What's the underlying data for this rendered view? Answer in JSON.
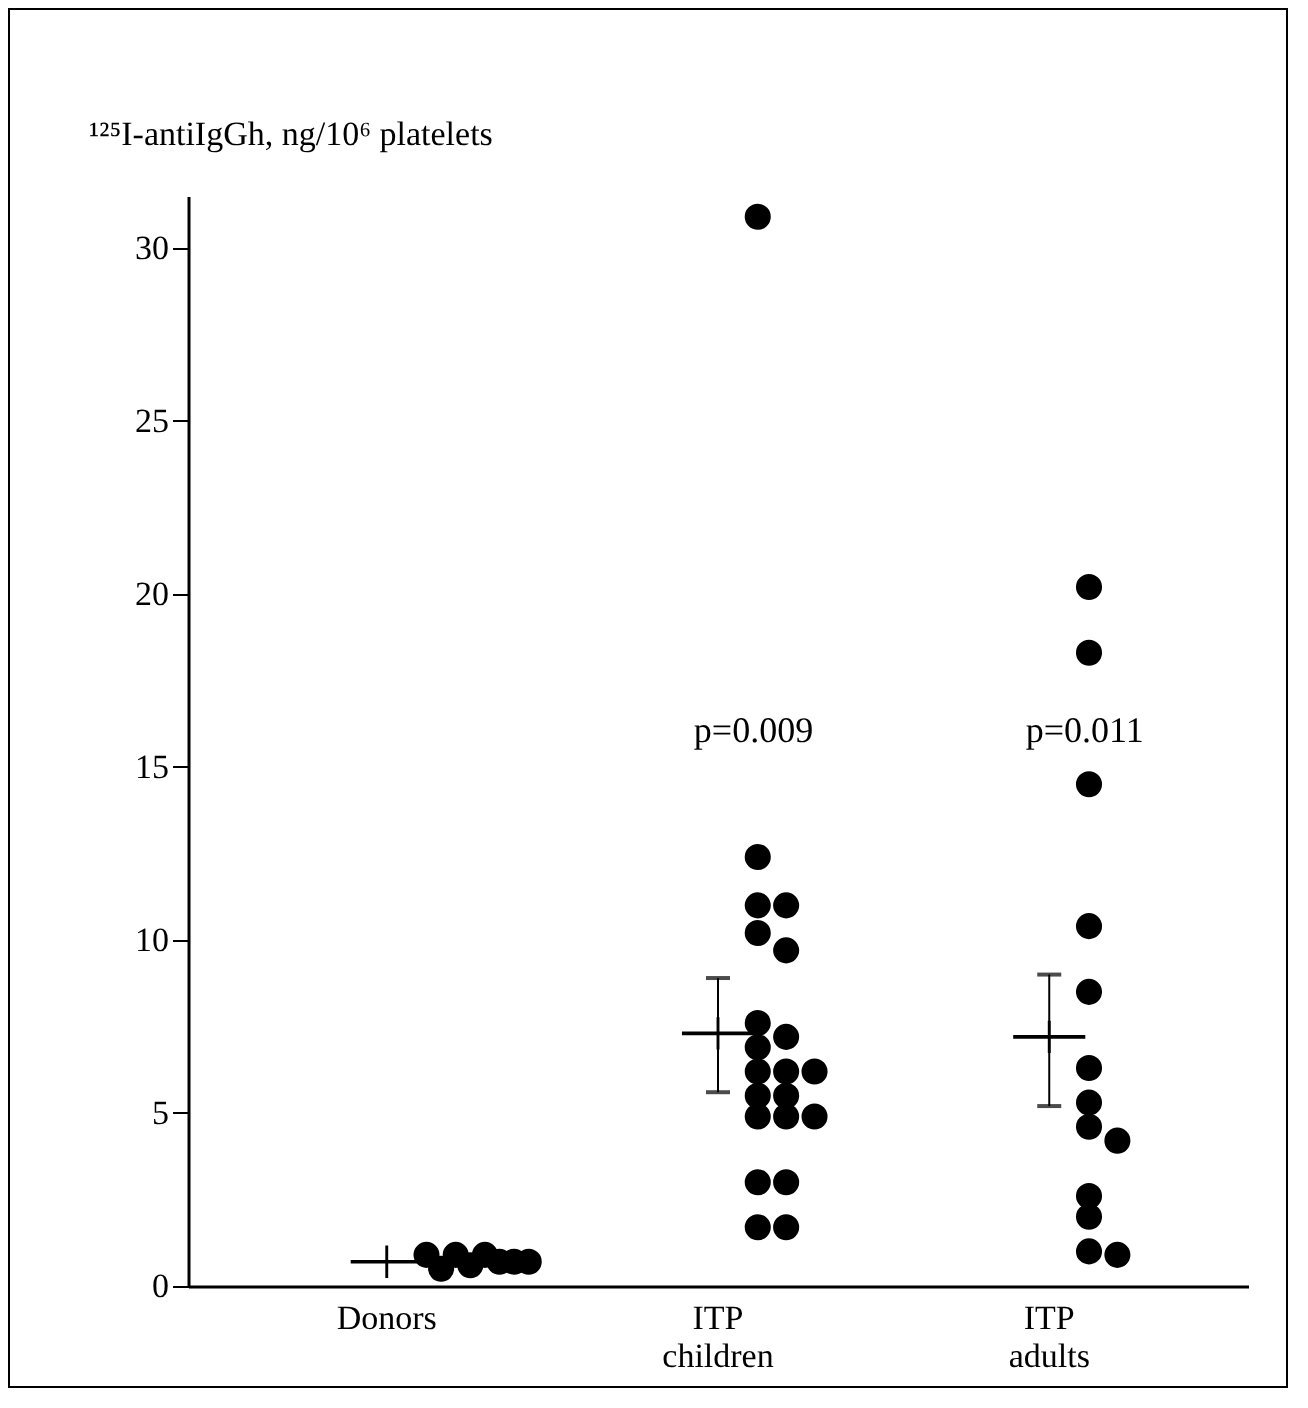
{
  "chart_data": {
    "type": "scatter",
    "ylabel": "¹²⁵I-antiIgGh, ng/10⁶ platelets",
    "categories": [
      "Donors",
      "ITP children",
      "ITP adults"
    ],
    "ylim": [
      0,
      31.5
    ],
    "yticks": [
      0,
      5,
      10,
      15,
      20,
      25,
      30
    ],
    "grid": false,
    "legend": false,
    "marker": "circle",
    "series": [
      {
        "type": "scatter",
        "color": "#000000",
        "x": [
          "Donors",
          "Donors",
          "Donors",
          "Donors",
          "Donors",
          "Donors",
          "Donors",
          "Donors",
          "ITP children",
          "ITP children",
          "ITP children",
          "ITP children",
          "ITP children",
          "ITP children",
          "ITP children",
          "ITP children",
          "ITP children",
          "ITP children",
          "ITP children",
          "ITP children",
          "ITP children",
          "ITP children",
          "ITP children",
          "ITP children",
          "ITP children",
          "ITP children",
          "ITP children",
          "ITP children",
          "ITP children",
          "ITP adults",
          "ITP adults",
          "ITP adults",
          "ITP adults",
          "ITP adults",
          "ITP adults",
          "ITP adults",
          "ITP adults",
          "ITP adults",
          "ITP adults",
          "ITP adults",
          "ITP adults",
          "ITP adults"
        ],
        "values": [
          0.9,
          0.5,
          0.9,
          0.6,
          0.9,
          0.7,
          0.7,
          0.7,
          30.9,
          12.4,
          11.0,
          11.0,
          10.2,
          9.7,
          7.6,
          7.2,
          6.9,
          6.2,
          6.2,
          6.2,
          5.5,
          5.5,
          4.9,
          4.9,
          4.9,
          3.0,
          3.0,
          1.7,
          1.7,
          20.2,
          18.3,
          14.5,
          10.4,
          8.5,
          6.3,
          5.3,
          4.6,
          4.2,
          2.6,
          2.0,
          1.0,
          0.9
        ]
      },
      {
        "type": "scatter",
        "color": "#000000",
        "x": [
          "Donors",
          "ITP children",
          "ITP adults"
        ],
        "values": [
          0.7,
          7.3,
          7.2
        ],
        "errors": [
          null,
          [
            5.6,
            8.9
          ],
          [
            5.2,
            9.0
          ]
        ]
      }
    ],
    "annotations": [
      "p=0.009",
      "p=0.011"
    ]
  }
}
